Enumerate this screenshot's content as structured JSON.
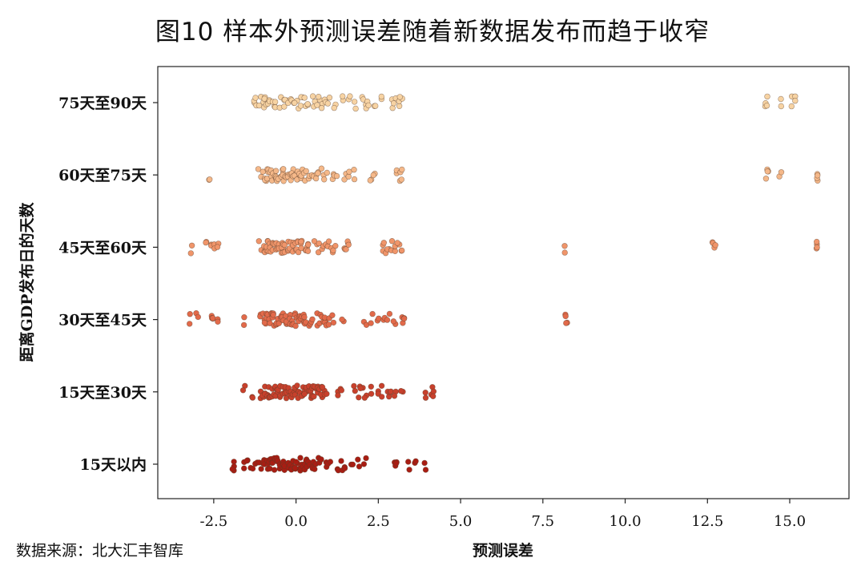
{
  "title": "图10  样本外预测误差随着新数据发布而趋于收窄",
  "source": "数据来源：北大汇丰智库",
  "chart_data": {
    "type": "scatter",
    "title": "图10  样本外预测误差随着新数据发布而趋于收窄",
    "xlabel": "预测误差",
    "ylabel": "距离GDP发布日的天数",
    "xlim": [
      -4.2,
      16.8
    ],
    "xticks": [
      -2.5,
      0.0,
      2.5,
      5.0,
      7.5,
      10.0,
      12.5,
      15.0
    ],
    "xtick_labels": [
      "-2.5",
      "0.0",
      "2.5",
      "5.0",
      "7.5",
      "10.0",
      "12.5",
      "15.0"
    ],
    "categories": [
      "15天以内",
      "15天至30天",
      "30天至45天",
      "45天至60天",
      "60天至75天",
      "75天至90天"
    ],
    "grid": false,
    "series": [
      {
        "category": "15天以内",
        "color": "#a81d13",
        "x": [
          -1.9,
          -1.9,
          -1.6,
          -1.5,
          -1.35,
          -1.2,
          -1.1,
          -1.0,
          -0.95,
          -0.9,
          -0.85,
          -0.8,
          -0.75,
          -0.7,
          -0.65,
          -0.6,
          -0.55,
          -0.5,
          -0.45,
          -0.4,
          -0.35,
          -0.3,
          -0.25,
          -0.2,
          -0.15,
          -0.1,
          -0.05,
          0.0,
          0.05,
          0.1,
          0.15,
          0.2,
          0.25,
          0.3,
          0.35,
          0.4,
          0.45,
          0.5,
          0.6,
          0.7,
          0.8,
          0.9,
          1.0,
          1.3,
          1.4,
          1.5,
          1.7,
          1.9,
          2.1,
          3.0,
          3.05,
          3.4,
          3.6,
          3.95
        ]
      },
      {
        "category": "15天至30天",
        "color": "#c8402c",
        "x": [
          -1.6,
          -1.3,
          -1.1,
          -1.0,
          -0.95,
          -0.9,
          -0.85,
          -0.8,
          -0.75,
          -0.7,
          -0.65,
          -0.6,
          -0.55,
          -0.5,
          -0.45,
          -0.4,
          -0.35,
          -0.3,
          -0.25,
          -0.2,
          -0.15,
          -0.1,
          -0.05,
          0.0,
          0.05,
          0.1,
          0.15,
          0.2,
          0.25,
          0.3,
          0.35,
          0.4,
          0.45,
          0.5,
          0.55,
          0.6,
          0.65,
          0.7,
          0.75,
          0.8,
          0.85,
          0.9,
          1.3,
          1.4,
          1.8,
          1.9,
          2.0,
          2.1,
          2.3,
          2.5,
          2.6,
          2.8,
          2.9,
          3.0,
          3.2,
          3.9,
          4.1,
          4.2
        ]
      },
      {
        "category": "30天至45天",
        "color": "#e26a4a",
        "x": [
          -3.2,
          -3.0,
          -2.6,
          -2.5,
          -2.4,
          -1.6,
          -1.1,
          -1.0,
          -0.95,
          -0.9,
          -0.85,
          -0.8,
          -0.75,
          -0.7,
          -0.65,
          -0.6,
          -0.55,
          -0.5,
          -0.45,
          -0.4,
          -0.35,
          -0.3,
          -0.25,
          -0.2,
          -0.15,
          -0.1,
          -0.05,
          0.0,
          0.05,
          0.1,
          0.15,
          0.2,
          0.25,
          0.3,
          0.4,
          0.5,
          0.6,
          0.7,
          0.8,
          0.85,
          0.9,
          1.0,
          1.1,
          1.4,
          2.1,
          2.3,
          2.5,
          2.7,
          2.8,
          3.0,
          3.2,
          3.3,
          8.15,
          8.2
        ]
      },
      {
        "category": "45天至60天",
        "color": "#f0956a",
        "x": [
          -3.2,
          -2.7,
          -2.6,
          -2.5,
          -2.4,
          -1.1,
          -1.0,
          -0.95,
          -0.9,
          -0.85,
          -0.8,
          -0.75,
          -0.7,
          -0.65,
          -0.6,
          -0.55,
          -0.5,
          -0.45,
          -0.4,
          -0.35,
          -0.3,
          -0.25,
          -0.2,
          -0.15,
          -0.1,
          -0.05,
          0.0,
          0.05,
          0.1,
          0.15,
          0.2,
          0.3,
          0.35,
          0.4,
          0.6,
          0.7,
          0.8,
          0.9,
          1.0,
          1.1,
          1.15,
          1.5,
          1.55,
          1.6,
          2.6,
          2.7,
          2.8,
          2.9,
          3.0,
          3.1,
          3.25,
          8.15,
          12.7,
          12.75,
          15.8,
          15.85
        ]
      },
      {
        "category": "60天至75天",
        "color": "#f5b889",
        "x": [
          -2.6,
          -1.1,
          -1.0,
          -0.95,
          -0.9,
          -0.85,
          -0.8,
          -0.75,
          -0.7,
          -0.65,
          -0.6,
          -0.55,
          -0.5,
          -0.45,
          -0.4,
          -0.35,
          -0.3,
          -0.25,
          -0.2,
          -0.15,
          -0.1,
          -0.05,
          0.0,
          0.05,
          0.1,
          0.15,
          0.2,
          0.3,
          0.4,
          0.5,
          0.6,
          0.7,
          0.8,
          0.9,
          1.1,
          1.2,
          1.5,
          1.6,
          1.8,
          2.3,
          2.4,
          3.1,
          3.15,
          3.2,
          14.3,
          14.35,
          14.7,
          15.8,
          15.85
        ]
      },
      {
        "category": "75天至90天",
        "color": "#f7d3a3",
        "x": [
          -1.3,
          -1.2,
          -1.1,
          -1.0,
          -0.95,
          -0.9,
          -0.8,
          -0.7,
          -0.6,
          -0.5,
          -0.4,
          -0.3,
          -0.2,
          -0.1,
          0.0,
          0.1,
          0.2,
          0.3,
          0.4,
          0.5,
          0.6,
          0.7,
          0.8,
          0.9,
          1.0,
          1.2,
          1.4,
          1.6,
          1.8,
          2.0,
          2.1,
          2.2,
          2.4,
          2.6,
          2.9,
          3.0,
          3.1,
          3.2,
          14.3,
          14.35,
          14.7,
          15.1,
          15.15
        ]
      }
    ]
  }
}
